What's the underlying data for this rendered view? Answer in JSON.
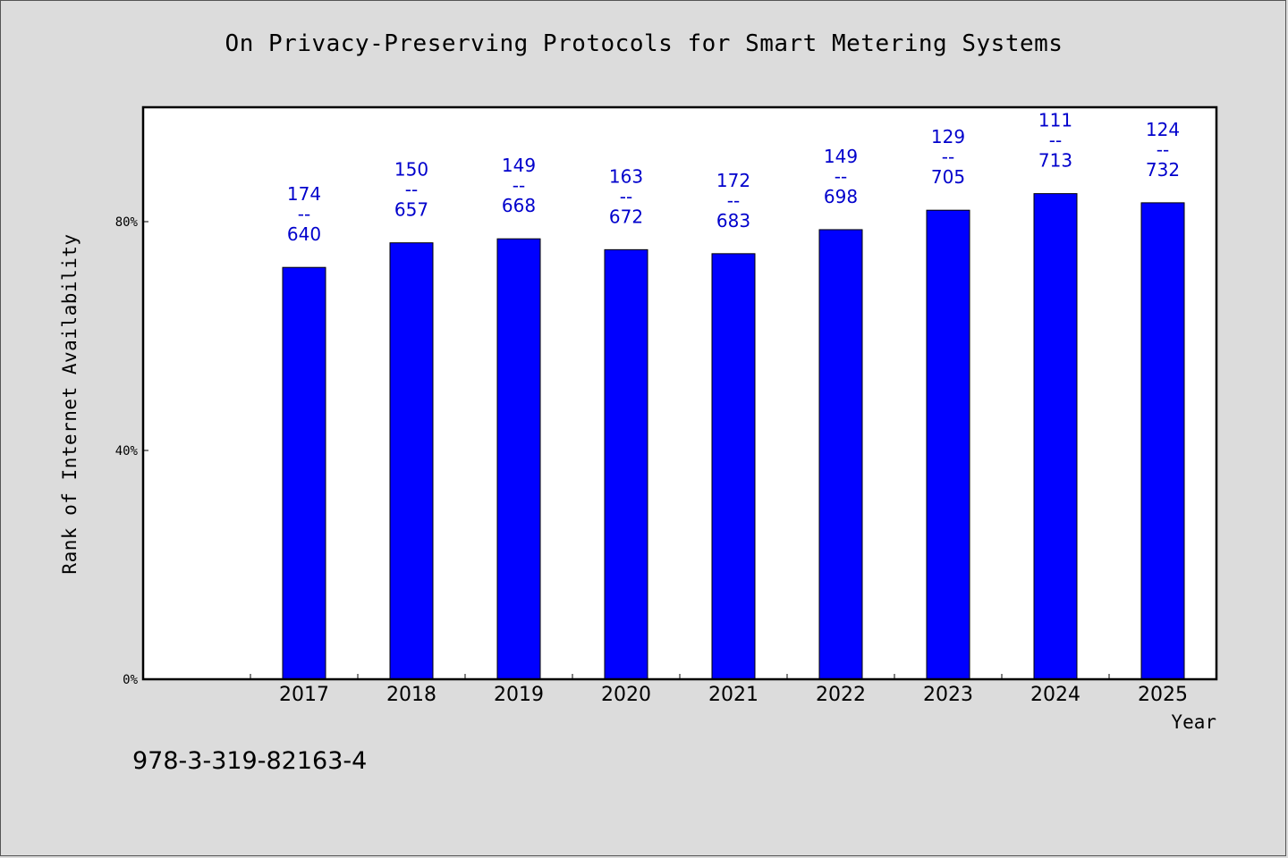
{
  "chart_data": {
    "type": "bar",
    "title": "On Privacy-Preserving Protocols for Smart Metering Systems",
    "ylabel": "Rank of Internet Availability",
    "xlabel": "Year",
    "categories": [
      "2017",
      "2018",
      "2019",
      "2020",
      "2021",
      "2022",
      "2023",
      "2024",
      "2025"
    ],
    "values": [
      72,
      76.3,
      77,
      75.1,
      74.4,
      78.6,
      82,
      84.9,
      83.3
    ],
    "data_labels": [
      [
        "174",
        "--",
        "640"
      ],
      [
        "150",
        "--",
        "657"
      ],
      [
        "149",
        "--",
        "668"
      ],
      [
        "163",
        "--",
        "672"
      ],
      [
        "172",
        "--",
        "683"
      ],
      [
        "149",
        "--",
        "698"
      ],
      [
        "129",
        "--",
        "705"
      ],
      [
        "111",
        "--",
        "713"
      ],
      [
        "124",
        "--",
        "732"
      ]
    ],
    "yticks": [
      0,
      40,
      80
    ],
    "ytick_labels": [
      "0%",
      "40%",
      "80%"
    ],
    "ylim": [
      0,
      100
    ],
    "x_slots": 10,
    "bar_color": "#0000ff",
    "label_color": "#0000cc",
    "grid": false
  },
  "footer": {
    "isbn": "978-3-319-82163-4"
  }
}
